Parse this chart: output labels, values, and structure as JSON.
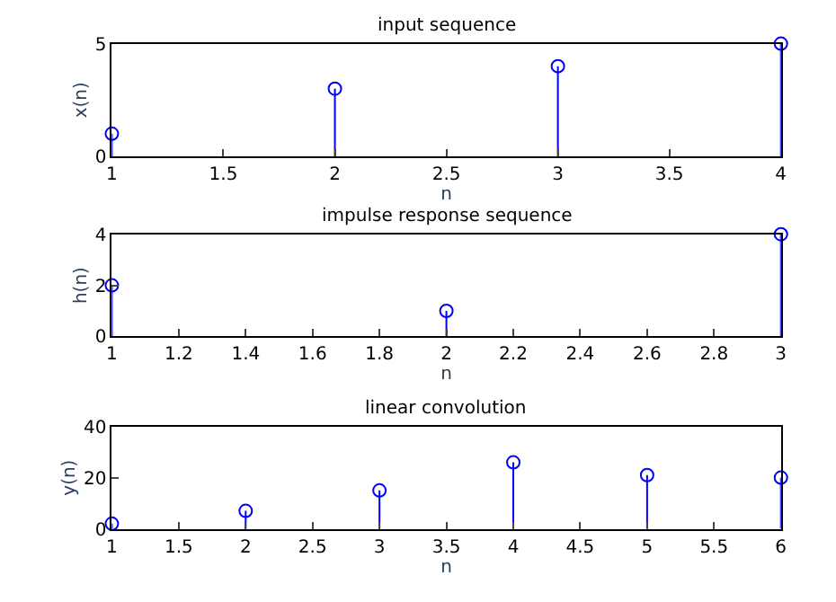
{
  "chart_data": [
    {
      "type": "lollipop",
      "title": "input sequence",
      "xlabel": "n",
      "ylabel": "x(n)",
      "x": [
        1,
        2,
        3,
        4
      ],
      "values": [
        1,
        3,
        4,
        5
      ],
      "color": "#0000ff",
      "marker": "circle",
      "xlim": [
        1,
        4
      ],
      "xticks": [
        1,
        1.5,
        2,
        2.5,
        3,
        3.5,
        4
      ],
      "ylim": [
        0,
        5
      ],
      "yticks": [
        0,
        5
      ]
    },
    {
      "type": "lollipop",
      "title": "impulse response sequence",
      "xlabel": "n",
      "ylabel": "h(n)",
      "x": [
        1,
        2,
        3
      ],
      "values": [
        2,
        1,
        4
      ],
      "color": "#0000ff",
      "marker": "circle",
      "xlim": [
        1,
        3
      ],
      "xticks": [
        1,
        1.2,
        1.4,
        1.6,
        1.8,
        2,
        2.2,
        2.4,
        2.6,
        2.8,
        3
      ],
      "ylim": [
        0,
        4
      ],
      "yticks": [
        0,
        2,
        4
      ]
    },
    {
      "type": "lollipop",
      "title": "linear convolution",
      "xlabel": "n",
      "ylabel": "y(n)",
      "x": [
        1,
        2,
        3,
        4,
        5,
        6
      ],
      "values": [
        2,
        7,
        15,
        26,
        21,
        20
      ],
      "color": "#0000ff",
      "marker": "circle",
      "xlim": [
        1,
        6
      ],
      "xticks": [
        1,
        1.5,
        2,
        2.5,
        3,
        3.5,
        4,
        4.5,
        5,
        5.5,
        6
      ],
      "ylim": [
        0,
        40
      ],
      "yticks": [
        0,
        20,
        40
      ]
    }
  ]
}
